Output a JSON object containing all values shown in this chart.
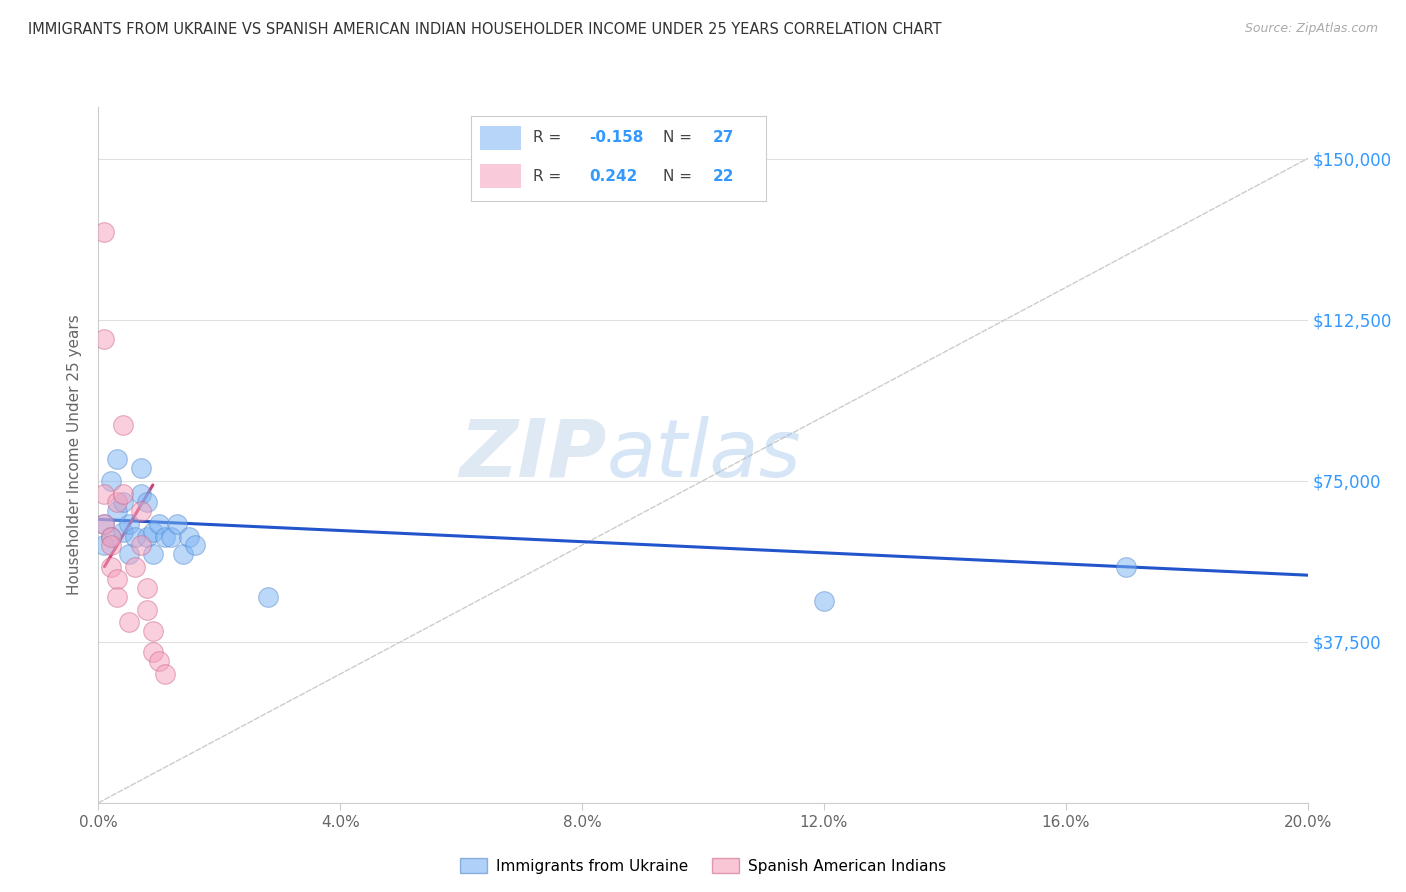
{
  "title": "IMMIGRANTS FROM UKRAINE VS SPANISH AMERICAN INDIAN HOUSEHOLDER INCOME UNDER 25 YEARS CORRELATION CHART",
  "source": "Source: ZipAtlas.com",
  "ylabel": "Householder Income Under 25 years",
  "legend_blue_label": "Immigrants from Ukraine",
  "legend_pink_label": "Spanish American Indians",
  "yticks": [
    0,
    37500,
    75000,
    112500,
    150000
  ],
  "ytick_labels": [
    "",
    "$37,500",
    "$75,000",
    "$112,500",
    "$150,000"
  ],
  "xlim": [
    0,
    0.2
  ],
  "ylim": [
    0,
    162000
  ],
  "watermark_zip": "ZIP",
  "watermark_atlas": "atlas",
  "blue_points_x": [
    0.001,
    0.001,
    0.002,
    0.002,
    0.003,
    0.003,
    0.004,
    0.004,
    0.005,
    0.005,
    0.006,
    0.007,
    0.007,
    0.008,
    0.008,
    0.009,
    0.009,
    0.01,
    0.011,
    0.012,
    0.013,
    0.014,
    0.015,
    0.016,
    0.028,
    0.12,
    0.17
  ],
  "blue_points_y": [
    65000,
    60000,
    75000,
    62000,
    80000,
    68000,
    70000,
    63000,
    65000,
    58000,
    62000,
    78000,
    72000,
    70000,
    62000,
    58000,
    63000,
    65000,
    62000,
    62000,
    65000,
    58000,
    62000,
    60000,
    48000,
    47000,
    55000
  ],
  "pink_points_x": [
    0.001,
    0.001,
    0.001,
    0.001,
    0.002,
    0.002,
    0.002,
    0.003,
    0.003,
    0.003,
    0.004,
    0.004,
    0.005,
    0.006,
    0.007,
    0.007,
    0.008,
    0.008,
    0.009,
    0.009,
    0.01,
    0.011
  ],
  "pink_points_y": [
    133000,
    108000,
    72000,
    65000,
    62000,
    60000,
    55000,
    70000,
    52000,
    48000,
    88000,
    72000,
    42000,
    55000,
    60000,
    68000,
    50000,
    45000,
    40000,
    35000,
    33000,
    30000
  ],
  "blue_line_x": [
    0.0,
    0.2
  ],
  "blue_line_y": [
    66000,
    53000
  ],
  "pink_line_x": [
    0.001,
    0.009
  ],
  "pink_line_y": [
    55000,
    74000
  ],
  "diag_line_x": [
    0.0,
    0.2
  ],
  "diag_line_y": [
    0,
    150000
  ],
  "title_color": "#333333",
  "source_color": "#aaaaaa",
  "blue_color": "#7ab3f5",
  "pink_color": "#f5a0bc",
  "blue_line_color": "#2255cc",
  "pink_line_color": "#cc4477",
  "diag_line_color": "#cccccc",
  "ytick_color": "#3399ff",
  "grid_color": "#e0e0e0",
  "bg_color": "#ffffff",
  "legend_R_blue": "-0.158",
  "legend_N_blue": "27",
  "legend_R_pink": "0.242",
  "legend_N_pink": "22"
}
